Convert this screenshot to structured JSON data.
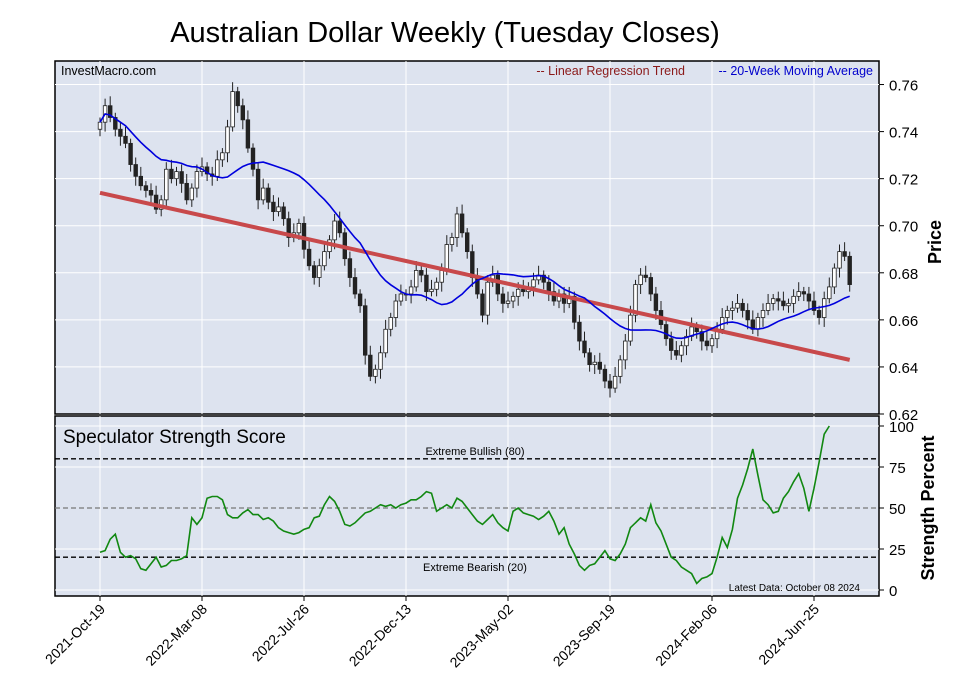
{
  "chart_data": {
    "type": "candlestick",
    "title": "Australian Dollar Weekly (Tuesday Closes)",
    "watermark": "InvestMacro.com",
    "x_tick_labels": [
      "2021-Oct-19",
      "2022-Mar-08",
      "2022-Jul-26",
      "2022-Dec-13",
      "2023-May-02",
      "2023-Sep-19",
      "2024-Feb-06",
      "2024-Jun-25"
    ],
    "x_tick_weeks": [
      0,
      20,
      40,
      60,
      80,
      100,
      120,
      140
    ],
    "price_panel": {
      "ylabel": "Price",
      "ylim": [
        0.62,
        0.77
      ],
      "y_ticks": [
        0.62,
        0.64,
        0.66,
        0.68,
        0.7,
        0.72,
        0.74,
        0.76
      ],
      "legend": [
        {
          "name": "-- Linear Regression Trend",
          "color": "#8b1a1a"
        },
        {
          "name": "-- 20-Week Moving Average",
          "color": "#0000cc"
        }
      ],
      "closes": [
        0.744,
        0.751,
        0.746,
        0.741,
        0.738,
        0.735,
        0.726,
        0.721,
        0.717,
        0.715,
        0.713,
        0.707,
        0.711,
        0.724,
        0.72,
        0.723,
        0.718,
        0.711,
        0.716,
        0.723,
        0.725,
        0.722,
        0.721,
        0.728,
        0.731,
        0.742,
        0.757,
        0.751,
        0.745,
        0.733,
        0.724,
        0.711,
        0.716,
        0.71,
        0.706,
        0.708,
        0.703,
        0.695,
        0.697,
        0.701,
        0.69,
        0.683,
        0.678,
        0.683,
        0.689,
        0.694,
        0.702,
        0.697,
        0.686,
        0.678,
        0.671,
        0.666,
        0.645,
        0.636,
        0.639,
        0.646,
        0.656,
        0.661,
        0.668,
        0.671,
        0.671,
        0.674,
        0.681,
        0.679,
        0.672,
        0.673,
        0.676,
        0.681,
        0.692,
        0.695,
        0.705,
        0.697,
        0.689,
        0.678,
        0.671,
        0.662,
        0.676,
        0.679,
        0.671,
        0.667,
        0.668,
        0.67,
        0.673,
        0.672,
        0.674,
        0.677,
        0.679,
        0.676,
        0.672,
        0.668,
        0.671,
        0.667,
        0.67,
        0.659,
        0.651,
        0.646,
        0.641,
        0.642,
        0.639,
        0.634,
        0.631,
        0.636,
        0.643,
        0.651,
        0.662,
        0.675,
        0.679,
        0.678,
        0.671,
        0.664,
        0.658,
        0.652,
        0.647,
        0.645,
        0.649,
        0.653,
        0.657,
        0.655,
        0.651,
        0.649,
        0.652,
        0.656,
        0.661,
        0.664,
        0.665,
        0.667,
        0.664,
        0.66,
        0.656,
        0.661,
        0.664,
        0.667,
        0.669,
        0.668,
        0.666,
        0.667,
        0.67,
        0.672,
        0.671,
        0.668,
        0.664,
        0.661,
        0.669,
        0.674,
        0.682,
        0.689,
        0.687,
        0.675
      ],
      "regression": {
        "start": 0.714,
        "end": 0.643
      },
      "ma_start_week": 0
    },
    "score_panel": {
      "title": "Speculator Strength Score",
      "ylabel": "Strength Percent",
      "ylim": [
        0,
        100
      ],
      "y_ticks": [
        0,
        25,
        50,
        75,
        100
      ],
      "y_tick_labels": [
        "0",
        "25",
        "50",
        "75",
        "100"
      ],
      "extreme_bullish": {
        "value": 80,
        "label": "Extreme Bullish (80)"
      },
      "extreme_bearish": {
        "value": 20,
        "label": "Extreme Bearish (20)"
      },
      "midline": 50,
      "latest_label": "Latest Data: October 08 2024",
      "values": [
        23,
        24,
        31,
        34,
        23,
        20,
        21,
        19,
        13,
        12,
        16,
        20,
        14,
        15,
        18,
        18,
        19,
        21,
        44,
        40,
        44,
        56,
        57,
        57,
        55,
        46,
        44,
        44,
        47,
        49,
        46,
        46,
        43,
        44,
        42,
        38,
        36,
        35,
        34,
        35,
        37,
        38,
        44,
        45,
        52,
        57,
        54,
        48,
        40,
        39,
        41,
        44,
        47,
        48,
        50,
        52,
        51,
        52,
        50,
        52,
        53,
        55,
        55,
        57,
        60,
        59,
        48,
        50,
        52,
        50,
        56,
        54,
        50,
        46,
        42,
        40,
        43,
        46,
        41,
        38,
        36,
        48,
        50,
        47,
        46,
        45,
        43,
        45,
        48,
        42,
        34,
        38,
        28,
        22,
        15,
        12,
        15,
        16,
        20,
        24,
        19,
        18,
        22,
        28,
        38,
        41,
        44,
        42,
        52,
        41,
        36,
        28,
        20,
        18,
        14,
        12,
        10,
        4,
        7,
        8,
        10,
        20,
        32,
        26,
        37,
        56,
        64,
        74,
        86,
        70,
        55,
        52,
        47,
        48,
        56,
        60,
        66,
        71,
        62,
        48,
        62,
        78,
        95,
        100
      ]
    }
  }
}
